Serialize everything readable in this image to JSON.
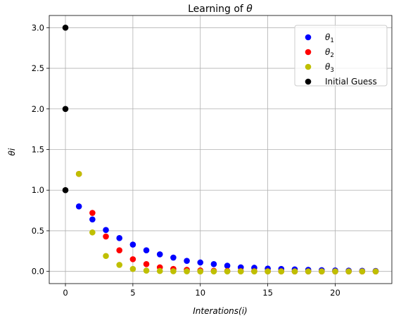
{
  "chart_data": {
    "type": "scatter",
    "title_prefix": "Learning of ",
    "title_symbol": "θ",
    "xlabel": "Interations(i)",
    "ylabel": "θi",
    "xlim": [
      -1.2,
      24.2
    ],
    "ylim": [
      -0.15,
      3.15
    ],
    "xticks": [
      0,
      5,
      10,
      15,
      20
    ],
    "yticks": [
      0.0,
      0.5,
      1.0,
      1.5,
      2.0,
      2.5,
      3.0
    ],
    "grid": true,
    "legend_position": "top-right",
    "series": [
      {
        "name": "θ1",
        "name_base": "θ",
        "name_sub": "1",
        "color": "#0000ff",
        "x": [
          1,
          2,
          3,
          4,
          5,
          6,
          7,
          8,
          9,
          10,
          11,
          12,
          13,
          14,
          15,
          16,
          17,
          18,
          19,
          20,
          21,
          22,
          23
        ],
        "y": [
          0.8,
          0.64,
          0.51,
          0.41,
          0.33,
          0.26,
          0.21,
          0.17,
          0.13,
          0.11,
          0.09,
          0.07,
          0.05,
          0.045,
          0.035,
          0.03,
          0.025,
          0.02,
          0.015,
          0.012,
          0.01,
          0.008,
          0.006
        ]
      },
      {
        "name": "θ2",
        "name_base": "θ",
        "name_sub": "2",
        "color": "#ff0000",
        "x": [
          1,
          2,
          3,
          4,
          5,
          6,
          7,
          8,
          9,
          10,
          11,
          12,
          13,
          14,
          15,
          16,
          17,
          18,
          19,
          20,
          21,
          22,
          23
        ],
        "y": [
          1.2,
          0.72,
          0.43,
          0.26,
          0.15,
          0.09,
          0.05,
          0.03,
          0.02,
          0.012,
          0.008,
          0.005,
          0.003,
          0.002,
          0.001,
          0.001,
          0.0,
          0.0,
          0.0,
          0.0,
          0.0,
          0.0,
          0.0
        ]
      },
      {
        "name": "θ3",
        "name_base": "θ",
        "name_sub": "3",
        "color": "#bfbf00",
        "x": [
          1,
          2,
          3,
          4,
          5,
          6,
          7,
          8,
          9,
          10,
          11,
          12,
          13,
          14,
          15,
          16,
          17,
          18,
          19,
          20,
          21,
          22,
          23
        ],
        "y": [
          1.2,
          0.48,
          0.19,
          0.08,
          0.03,
          0.01,
          0.005,
          0.002,
          0.001,
          0.0,
          0.0,
          0.0,
          0.0,
          0.0,
          0.0,
          0.0,
          0.0,
          0.0,
          0.0,
          0.0,
          0.0,
          0.0,
          0.0
        ]
      },
      {
        "name": "Initial Guess",
        "color": "#000000",
        "x": [
          0,
          0,
          0
        ],
        "y": [
          1.0,
          2.0,
          3.0
        ]
      }
    ]
  }
}
